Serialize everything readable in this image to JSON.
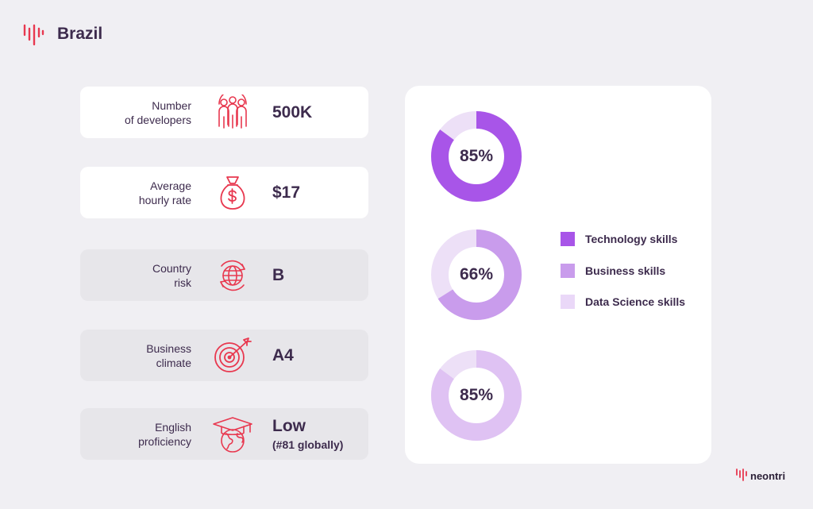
{
  "header": {
    "title": "Brazil",
    "logo_icon": "soundwave-logo-icon"
  },
  "metrics": [
    {
      "label": "Number\nof developers",
      "icon": "people-group-icon",
      "value": "500K",
      "sub": ""
    },
    {
      "label": "Average\nhourly rate",
      "icon": "money-bag-icon",
      "value": "$17",
      "sub": ""
    },
    {
      "label": "Country\nrisk",
      "icon": "globe-arrows-icon",
      "value": "B",
      "sub": ""
    },
    {
      "label": "Business\nclimate",
      "icon": "target-arrow-icon",
      "value": "A4",
      "sub": ""
    },
    {
      "label": "English\nproficiency",
      "icon": "graduation-globe-icon",
      "value": "Low",
      "sub": "(#81 globally)"
    }
  ],
  "chart_data": {
    "type": "pie",
    "charts": [
      {
        "label": "85%",
        "value": 85,
        "series": "Technology skills",
        "color": "#a855e8"
      },
      {
        "label": "66%",
        "value": 66,
        "series": "Business skills",
        "color": "#c99cec"
      },
      {
        "label": "85%",
        "value": 85,
        "series": "Data Science skills",
        "color": "#dfc2f3"
      }
    ],
    "track_color": "#ede0f7",
    "legend": [
      {
        "name": "Technology skills",
        "color": "#a855e8"
      },
      {
        "name": "Business skills",
        "color": "#c99cec"
      },
      {
        "name": "Data Science skills",
        "color": "#ead8f8"
      }
    ],
    "legend_placement": "right"
  },
  "brand": {
    "name": "neontri",
    "accent": "#e8384f"
  },
  "colors": {
    "accent": "#e8384f",
    "background": "#f0eff3",
    "text": "#3d2b4d"
  }
}
